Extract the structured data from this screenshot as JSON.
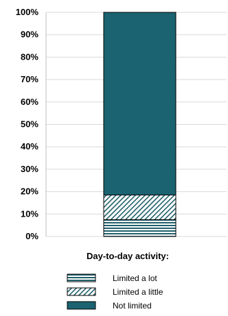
{
  "chart_data": {
    "type": "bar",
    "stacked": true,
    "categories": [
      ""
    ],
    "series": [
      {
        "name": "Limited a lot",
        "values": [
          7.5
        ],
        "pattern": "horizontal-lines",
        "color": "#1f5f6b"
      },
      {
        "name": "Limited a little",
        "values": [
          11
        ],
        "pattern": "diagonal-hatch",
        "color": "#1f5f6b"
      },
      {
        "name": "Not limited",
        "values": [
          81.5
        ],
        "pattern": "solid",
        "color": "#1b6370"
      }
    ],
    "ylim": [
      0,
      100
    ],
    "yticks": [
      "0%",
      "10%",
      "20%",
      "30%",
      "40%",
      "50%",
      "60%",
      "70%",
      "80%",
      "90%",
      "100%"
    ],
    "grid": true,
    "legend_title": "Day-to-day activity:",
    "legend_position": "bottom"
  }
}
